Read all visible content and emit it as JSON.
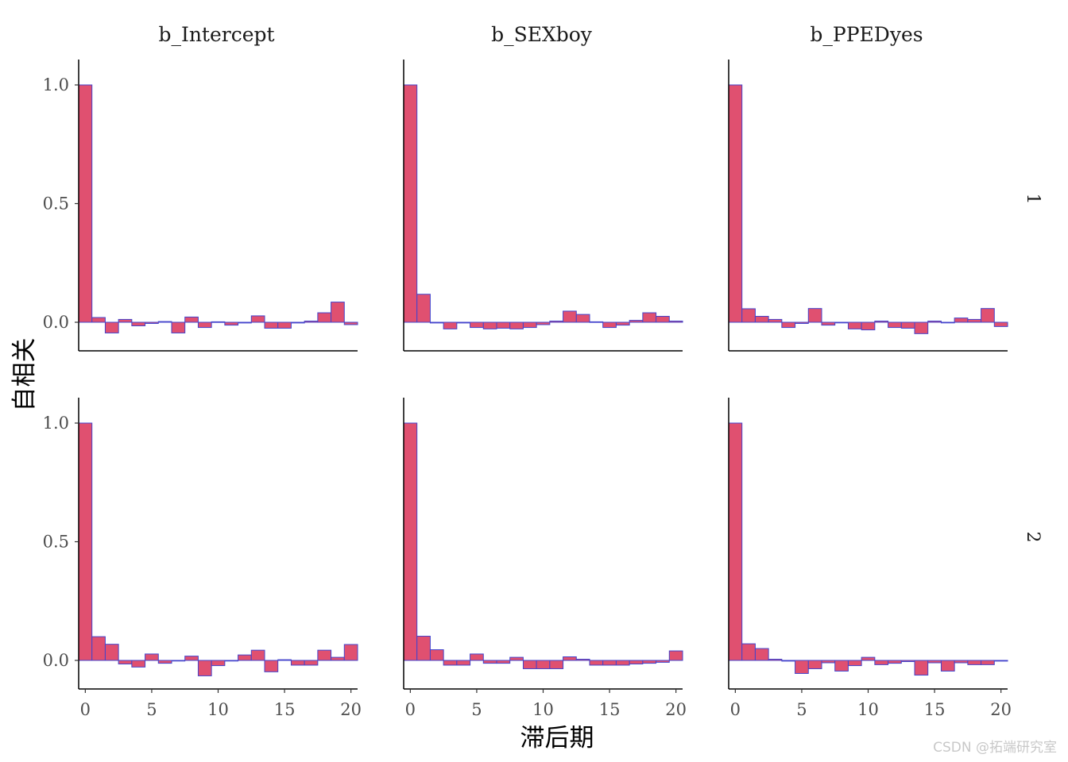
{
  "chart_data": {
    "type": "bar",
    "xlabel": "滞后期",
    "ylabel": "自相关",
    "columns": [
      "b_Intercept",
      "b_SEXboy",
      "b_PPEDyes"
    ],
    "rows": [
      "1",
      "2"
    ],
    "xlim": [
      -0.5,
      20.5
    ],
    "ylim": [
      -0.12,
      1.1
    ],
    "x_ticks": [
      0,
      5,
      10,
      15,
      20
    ],
    "y_ticks": [
      0.0,
      0.5,
      1.0
    ],
    "y_tick_labels": [
      "0.0",
      "0.5",
      "1.0"
    ],
    "lags": [
      0,
      1,
      2,
      3,
      4,
      5,
      6,
      7,
      8,
      9,
      10,
      11,
      12,
      13,
      14,
      15,
      16,
      17,
      18,
      19,
      20
    ],
    "bar_fill": "#e05070",
    "bar_stroke": "#4444cc",
    "panels": [
      {
        "column": "b_Intercept",
        "row": "1",
        "values": [
          1.0,
          0.02,
          -0.045,
          0.012,
          -0.015,
          -0.005,
          0.003,
          -0.045,
          0.022,
          -0.022,
          0.002,
          -0.012,
          -0.003,
          0.027,
          -0.025,
          -0.025,
          -0.003,
          0.005,
          0.04,
          0.085,
          -0.01
        ]
      },
      {
        "column": "b_SEXboy",
        "row": "1",
        "values": [
          1.0,
          0.118,
          -0.003,
          -0.028,
          -0.003,
          -0.022,
          -0.028,
          -0.025,
          -0.028,
          -0.022,
          -0.01,
          0.005,
          0.047,
          0.033,
          0.002,
          -0.022,
          -0.012,
          0.008,
          0.04,
          0.025,
          0.005
        ]
      },
      {
        "column": "b_PPEDyes",
        "row": "1",
        "values": [
          1.0,
          0.057,
          0.025,
          0.012,
          -0.022,
          -0.005,
          0.058,
          -0.012,
          0.0,
          -0.028,
          -0.032,
          0.005,
          -0.022,
          -0.025,
          -0.048,
          0.005,
          0.0,
          0.018,
          0.012,
          0.058,
          -0.018
        ]
      },
      {
        "column": "b_Intercept",
        "row": "2",
        "values": [
          1.0,
          0.1,
          0.068,
          -0.015,
          -0.028,
          0.027,
          -0.012,
          0.0,
          0.018,
          -0.065,
          -0.022,
          0.0,
          0.023,
          0.043,
          -0.048,
          0.003,
          -0.02,
          -0.02,
          0.043,
          0.013,
          0.067
        ]
      },
      {
        "column": "b_SEXboy",
        "row": "2",
        "values": [
          1.0,
          0.102,
          0.045,
          -0.02,
          -0.02,
          0.027,
          -0.012,
          -0.012,
          0.013,
          -0.035,
          -0.035,
          -0.035,
          0.015,
          0.005,
          -0.02,
          -0.02,
          -0.02,
          -0.015,
          -0.012,
          -0.008,
          0.04
        ]
      },
      {
        "column": "b_PPEDyes",
        "row": "2",
        "values": [
          1.0,
          0.07,
          0.05,
          0.005,
          -0.003,
          -0.055,
          -0.035,
          -0.01,
          -0.045,
          -0.022,
          0.013,
          -0.018,
          -0.012,
          -0.005,
          -0.062,
          -0.01,
          -0.045,
          -0.01,
          -0.018,
          -0.018,
          -0.003
        ]
      }
    ]
  },
  "watermark": "CSDN @拓端研究室"
}
